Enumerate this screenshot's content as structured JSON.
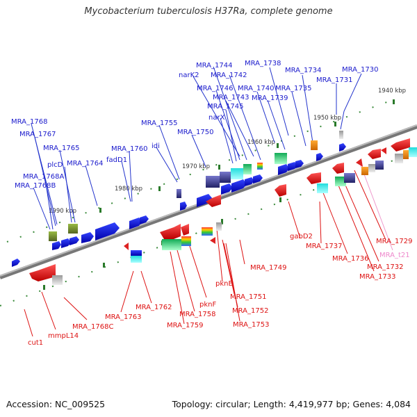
{
  "title": "Mycobacterium tuberculosis H37Ra, complete genome",
  "footer": {
    "accession": "Accession: NC_009525",
    "topology": "Topology: circular; Length: 4,419,977 bp; Genes: 4,084"
  },
  "colors": {
    "upper_label": "#1a1acc",
    "lower_label": "#dd1111",
    "rna_label": "#ee88cc",
    "backbone": "#888888",
    "tick": "#338833"
  },
  "ruler": [
    "1940 kbp",
    "1950 kbp",
    "1960 kbp",
    "1970 kbp",
    "1980 kbp",
    "1990 kbp"
  ],
  "upper_genes": [
    "MRA_1730",
    "MRA_1731",
    "MRA_1734",
    "MRA_1735",
    "MRA_1738",
    "MRA_1739",
    "MRA_1740",
    "MRA_1742",
    "MRA_1743",
    "MRA_1744",
    "narK2",
    "MRA_1746",
    "MRA_1745",
    "narX",
    "MRA_1750",
    "MRA_1755",
    "idi",
    "MRA_1760",
    "fadD1",
    "MRA_1764",
    "MRA_1765",
    "plcD",
    "MRA_1767",
    "MRA_1768",
    "MRA_1768A",
    "MRA_1768B"
  ],
  "lower_genes": [
    "MRA_1729",
    "MRA_t21",
    "MRA_1732",
    "MRA_1733",
    "MRA_1736",
    "MRA_1737",
    "gabD2",
    "MRA_1749",
    "pknE",
    "MRA_1751",
    "MRA_1752",
    "MRA_1753",
    "pknF",
    "MRA_1758",
    "MRA_1759",
    "MRA_1762",
    "MRA_1763",
    "MRA_1768C",
    "mmpL14",
    "cut1"
  ]
}
